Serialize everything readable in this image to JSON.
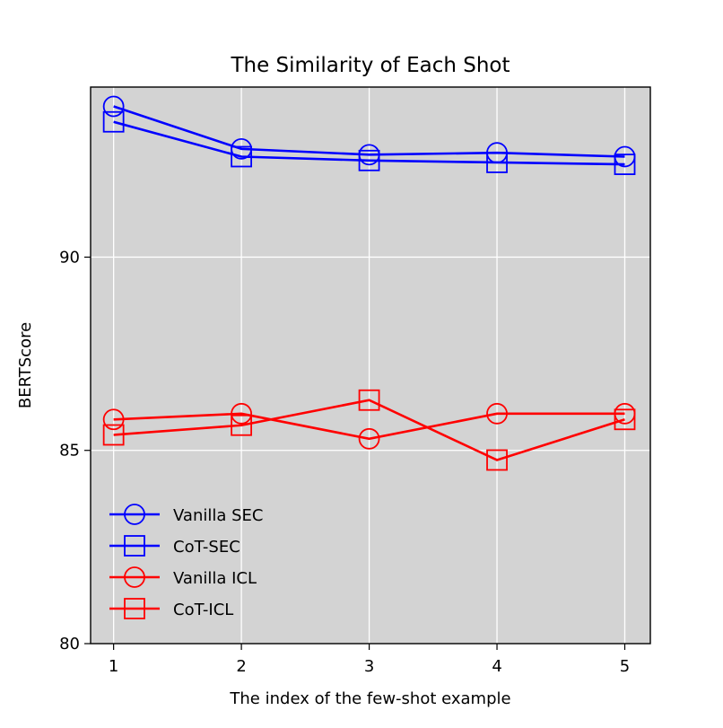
{
  "chart_data": {
    "type": "line",
    "title": "The Similarity of Each Shot",
    "xlabel": "The index of the few-shot example",
    "ylabel": "BERTScore",
    "x": [
      1,
      2,
      3,
      4,
      5
    ],
    "xticks": [
      "1",
      "2",
      "3",
      "4",
      "5"
    ],
    "yticks": [
      "80",
      "85",
      "90"
    ],
    "ytick_values": [
      80,
      85,
      90
    ],
    "xlim": [
      0.82,
      5.2
    ],
    "ylim": [
      80,
      94.4
    ],
    "grid": true,
    "background": "#d3d3d3",
    "legend_position": "lower-left",
    "series": [
      {
        "name": "Vanilla SEC",
        "marker": "circle",
        "color": "#0000ff",
        "values": [
          93.9,
          92.8,
          92.65,
          92.7,
          92.6
        ]
      },
      {
        "name": "CoT-SEC",
        "marker": "square",
        "color": "#0000ff",
        "values": [
          93.5,
          92.6,
          92.5,
          92.45,
          92.4
        ]
      },
      {
        "name": "Vanilla ICL",
        "marker": "circle",
        "color": "#ff0000",
        "values": [
          85.8,
          85.95,
          85.3,
          85.95,
          85.95
        ]
      },
      {
        "name": "CoT-ICL",
        "marker": "square",
        "color": "#ff0000",
        "values": [
          85.4,
          85.65,
          86.3,
          84.75,
          85.8
        ]
      }
    ]
  }
}
